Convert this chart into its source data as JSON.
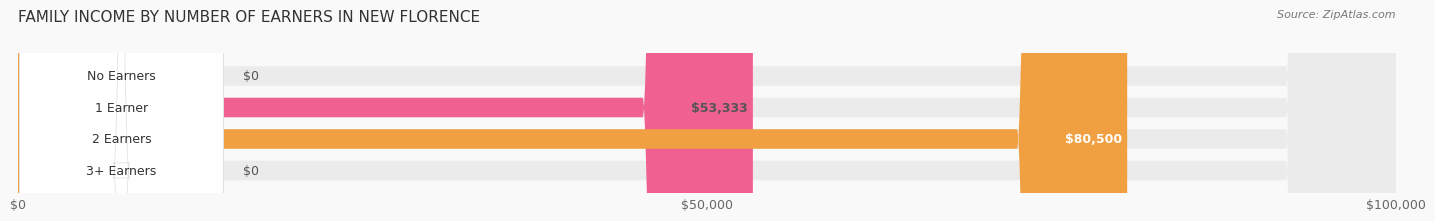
{
  "title": "FAMILY INCOME BY NUMBER OF EARNERS IN NEW FLORENCE",
  "source": "Source: ZipAtlas.com",
  "categories": [
    "No Earners",
    "1 Earner",
    "2 Earners",
    "3+ Earners"
  ],
  "values": [
    0,
    53333,
    80500,
    0
  ],
  "bar_colors": [
    "#a8a8d8",
    "#f06090",
    "#f0a040",
    "#f0a8a0"
  ],
  "bar_bg_color": "#ebebeb",
  "label_bg_color": "#ffffff",
  "xlim": [
    0,
    100000
  ],
  "xticks": [
    0,
    50000,
    100000
  ],
  "xtick_labels": [
    "$0",
    "$50,000",
    "$100,000"
  ],
  "value_labels": [
    "$0",
    "$53,333",
    "$80,500",
    "$0"
  ],
  "value_label_colors": [
    "#555555",
    "#555555",
    "#ffffff",
    "#555555"
  ],
  "fig_width": 14.06,
  "fig_height": 2.33,
  "background_color": "#f9f9f9",
  "title_fontsize": 11,
  "bar_height": 0.62
}
